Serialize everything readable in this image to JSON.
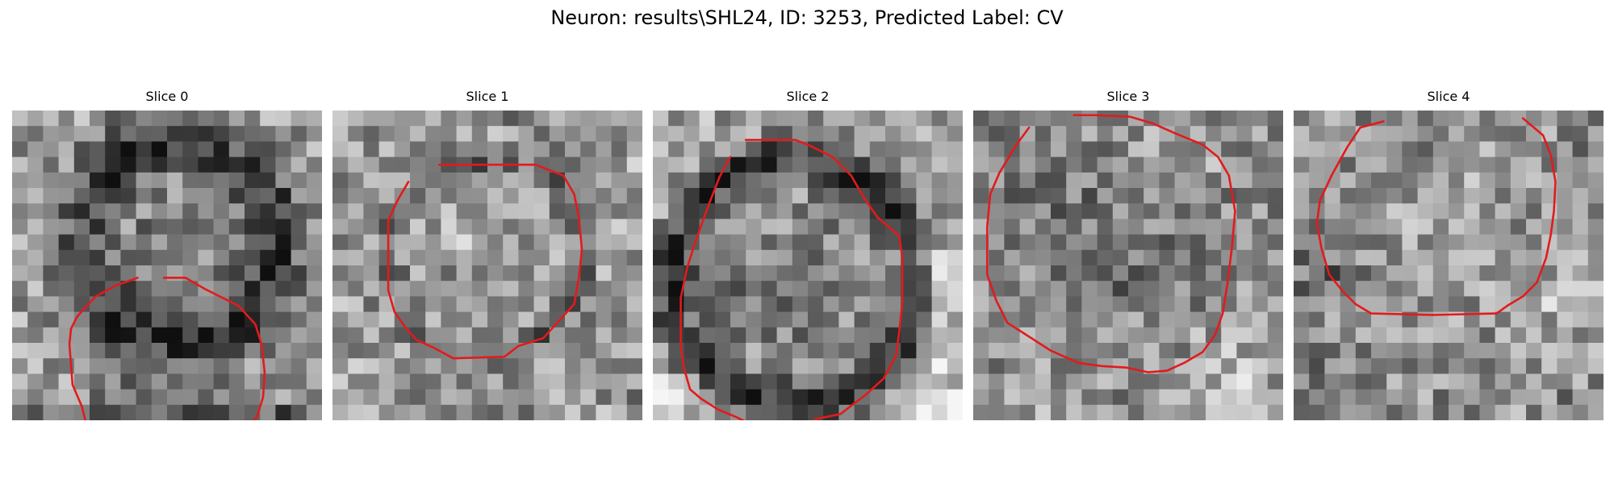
{
  "figure": {
    "title": "Neuron: results\\SHL24, ID: 3253, Predicted Label: CV"
  },
  "panels": [
    {
      "title": "Slice 0",
      "contour_color": "#e31a1c",
      "contour": [
        [
          9.8,
          10.8
        ],
        [
          11.2,
          10.8
        ],
        [
          12.4,
          11.5
        ],
        [
          13.2,
          11.9
        ],
        [
          14.6,
          12.6
        ],
        [
          15.7,
          13.8
        ],
        [
          16.1,
          15.1
        ],
        [
          16.3,
          16.9
        ],
        [
          16.2,
          18.5
        ],
        [
          15.8,
          19.8
        ],
        [
          14.8,
          20.8
        ],
        [
          14.2,
          21.3
        ],
        [
          13.3,
          21.9
        ],
        [
          12.3,
          22.7
        ],
        [
          11.3,
          23.4
        ],
        [
          9.8,
          24.1
        ],
        [
          7.8,
          23.8
        ],
        [
          6.3,
          22.9
        ],
        [
          5.1,
          21.5
        ],
        [
          4.5,
          19.1
        ],
        [
          3.9,
          17.7
        ],
        [
          3.7,
          15.1
        ],
        [
          3.8,
          14.1
        ],
        [
          4.2,
          13.3
        ],
        [
          5.4,
          12.0
        ],
        [
          6.7,
          11.3
        ],
        [
          8.1,
          10.8
        ]
      ]
    },
    {
      "title": "Slice 1",
      "contour_color": "#e31a1c",
      "contour": [
        [
          6.9,
          3.5
        ],
        [
          13.1,
          3.5
        ],
        [
          14.9,
          4.2
        ],
        [
          15.6,
          5.4
        ],
        [
          15.9,
          6.9
        ],
        [
          16.1,
          9.0
        ],
        [
          15.9,
          10.8
        ],
        [
          15.6,
          12.5
        ],
        [
          14.6,
          13.6
        ],
        [
          13.6,
          14.7
        ],
        [
          12.0,
          15.2
        ],
        [
          11.1,
          15.9
        ],
        [
          7.8,
          16.0
        ],
        [
          6.5,
          15.3
        ],
        [
          5.4,
          14.8
        ],
        [
          4.7,
          14.0
        ],
        [
          4.0,
          13.0
        ],
        [
          3.6,
          11.6
        ],
        [
          3.6,
          7.1
        ],
        [
          4.2,
          5.8
        ],
        [
          4.9,
          4.6
        ]
      ]
    },
    {
      "title": "Slice 2",
      "contour_color": "#e31a1c",
      "contour": [
        [
          6.0,
          1.9
        ],
        [
          9.2,
          1.9
        ],
        [
          10.2,
          2.3
        ],
        [
          11.6,
          3.0
        ],
        [
          12.8,
          4.2
        ],
        [
          13.6,
          5.6
        ],
        [
          14.5,
          6.9
        ],
        [
          15.9,
          8.1
        ],
        [
          16.1,
          9.5
        ],
        [
          16.1,
          12.4
        ],
        [
          15.9,
          14.3
        ],
        [
          15.7,
          15.8
        ],
        [
          14.9,
          17.3
        ],
        [
          13.8,
          18.3
        ],
        [
          12.1,
          19.6
        ],
        [
          10.6,
          19.9
        ],
        [
          9.5,
          20.4
        ],
        [
          8.0,
          20.6
        ],
        [
          6.4,
          20.3
        ],
        [
          5.4,
          19.8
        ],
        [
          4.2,
          19.3
        ],
        [
          3.1,
          18.6
        ],
        [
          2.4,
          18.0
        ],
        [
          2.0,
          16.6
        ],
        [
          1.8,
          15.1
        ],
        [
          1.8,
          12.1
        ],
        [
          2.2,
          10.2
        ],
        [
          2.7,
          8.6
        ],
        [
          3.6,
          6.1
        ],
        [
          4.3,
          4.3
        ],
        [
          5.0,
          3.0
        ]
      ]
    },
    {
      "title": "Slice 3",
      "contour_color": "#e31a1c",
      "contour": [
        [
          3.6,
          1.1
        ],
        [
          2.8,
          2.2
        ],
        [
          1.7,
          4.0
        ],
        [
          1.1,
          5.4
        ],
        [
          0.9,
          7.5
        ],
        [
          0.9,
          10.6
        ],
        [
          1.5,
          12.3
        ],
        [
          2.2,
          13.7
        ],
        [
          3.6,
          14.6
        ],
        [
          5.0,
          15.5
        ],
        [
          6.8,
          16.3
        ],
        [
          8.3,
          16.5
        ],
        [
          9.9,
          16.6
        ],
        [
          11.3,
          16.9
        ],
        [
          12.5,
          16.8
        ],
        [
          13.6,
          16.3
        ],
        [
          14.8,
          15.6
        ],
        [
          15.6,
          14.5
        ],
        [
          16.1,
          13.1
        ],
        [
          16.4,
          11.2
        ],
        [
          16.7,
          8.8
        ],
        [
          16.9,
          6.5
        ],
        [
          16.5,
          4.2
        ],
        [
          15.8,
          3.0
        ],
        [
          14.8,
          2.2
        ],
        [
          13.1,
          1.5
        ],
        [
          11.5,
          0.8
        ],
        [
          10.1,
          0.4
        ],
        [
          7.8,
          0.3
        ],
        [
          6.5,
          0.3
        ]
      ]
    },
    {
      "title": "Slice 4",
      "contour_color": "#e31a1c",
      "contour": [
        [
          14.8,
          0.5
        ],
        [
          16.1,
          1.6
        ],
        [
          16.6,
          2.9
        ],
        [
          16.9,
          4.6
        ],
        [
          16.8,
          6.5
        ],
        [
          16.6,
          8.0
        ],
        [
          16.3,
          9.5
        ],
        [
          15.7,
          11.1
        ],
        [
          14.8,
          12.0
        ],
        [
          13.8,
          12.6
        ],
        [
          13.1,
          13.1
        ],
        [
          9.0,
          13.2
        ],
        [
          5.0,
          13.1
        ],
        [
          4.0,
          12.5
        ],
        [
          3.2,
          11.7
        ],
        [
          2.3,
          10.6
        ],
        [
          1.8,
          8.9
        ],
        [
          1.5,
          7.3
        ],
        [
          1.7,
          5.8
        ],
        [
          2.5,
          4.1
        ],
        [
          3.5,
          2.3
        ],
        [
          4.3,
          1.1
        ],
        [
          5.8,
          0.7
        ]
      ]
    }
  ]
}
